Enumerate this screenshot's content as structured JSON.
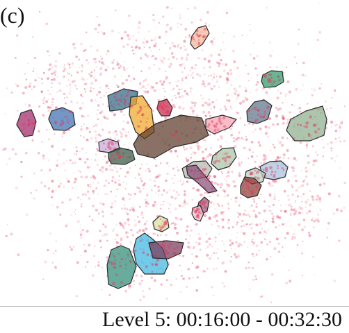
{
  "panel_label": "(c)",
  "caption": "Level 5: 00:16:00 - 00:32:30",
  "colors": {
    "point_color": "#e0395f",
    "cluster_stroke": "#2b2b2b",
    "divider": "#b5b5b5"
  },
  "clusters": [
    {
      "id": "purple-left",
      "fill": "#a0286a"
    },
    {
      "id": "blue-left",
      "fill": "#3d6fb0"
    },
    {
      "id": "teal-upper",
      "fill": "#2f6a86"
    },
    {
      "id": "orange",
      "fill": "#f0a829"
    },
    {
      "id": "crimson-small",
      "fill": "#c8264a"
    },
    {
      "id": "brown-large",
      "fill": "#5c3b2a"
    },
    {
      "id": "pink-right",
      "fill": "#f7a3b3"
    },
    {
      "id": "peach-top",
      "fill": "#f2b99a"
    },
    {
      "id": "green-top-right",
      "fill": "#2f9a6a"
    },
    {
      "id": "slate-right",
      "fill": "#5f7488"
    },
    {
      "id": "sage-far-right",
      "fill": "#8fae8e"
    },
    {
      "id": "lavender",
      "fill": "#c9a9d8"
    },
    {
      "id": "darkgreen-small",
      "fill": "#345a45"
    },
    {
      "id": "sage-mid",
      "fill": "#a9c4a3"
    },
    {
      "id": "grey-mid",
      "fill": "#b7b7b0"
    },
    {
      "id": "mauve",
      "fill": "#8b4f78"
    },
    {
      "id": "lightblue-right",
      "fill": "#a7c0dd"
    },
    {
      "id": "mintgrey-right",
      "fill": "#b9d0c2"
    },
    {
      "id": "rust-right",
      "fill": "#8b3a34"
    },
    {
      "id": "mauve-small",
      "fill": "#9a5a7a"
    },
    {
      "id": "lightpink-small",
      "fill": "#f2c7d6"
    },
    {
      "id": "yellowgreen",
      "fill": "#d8e0a0"
    },
    {
      "id": "teal-bottom",
      "fill": "#2f8a76"
    },
    {
      "id": "cyan-bottom",
      "fill": "#3fb5e0"
    },
    {
      "id": "plum-bottom",
      "fill": "#7a3a5a"
    }
  ]
}
